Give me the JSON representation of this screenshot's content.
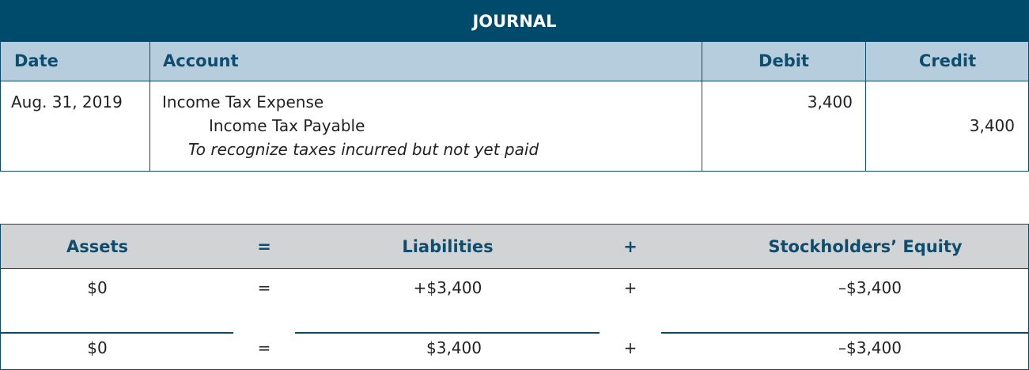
{
  "journal": {
    "title": "JOURNAL",
    "headers": {
      "date": "Date",
      "account": "Account",
      "debit": "Debit",
      "credit": "Credit"
    },
    "entry": {
      "date": "Aug. 31, 2019",
      "debit_account": "Income Tax Expense",
      "credit_account": "Income Tax Payable",
      "memo": "To recognize taxes incurred but not yet paid",
      "debit": "3,400",
      "credit": "3,400"
    }
  },
  "equation": {
    "headers": {
      "assets": "Assets",
      "eq": "=",
      "liabilities": "Liabilities",
      "plus": "+",
      "equity": "Stockholders’ Equity"
    },
    "row1": {
      "assets": "$0",
      "eq": "=",
      "liabilities": "+$3,400",
      "plus": "+",
      "equity": "–$3,400"
    },
    "row2": {
      "assets": "$0",
      "eq": "=",
      "liabilities": "$3,400",
      "plus": "+",
      "equity": "–$3,400"
    }
  },
  "colors": {
    "title_bg": "#004b6b",
    "header_bg": "#b5cddc",
    "equation_header_bg": "#d1d3d4",
    "header_text": "#0e4d6e"
  }
}
